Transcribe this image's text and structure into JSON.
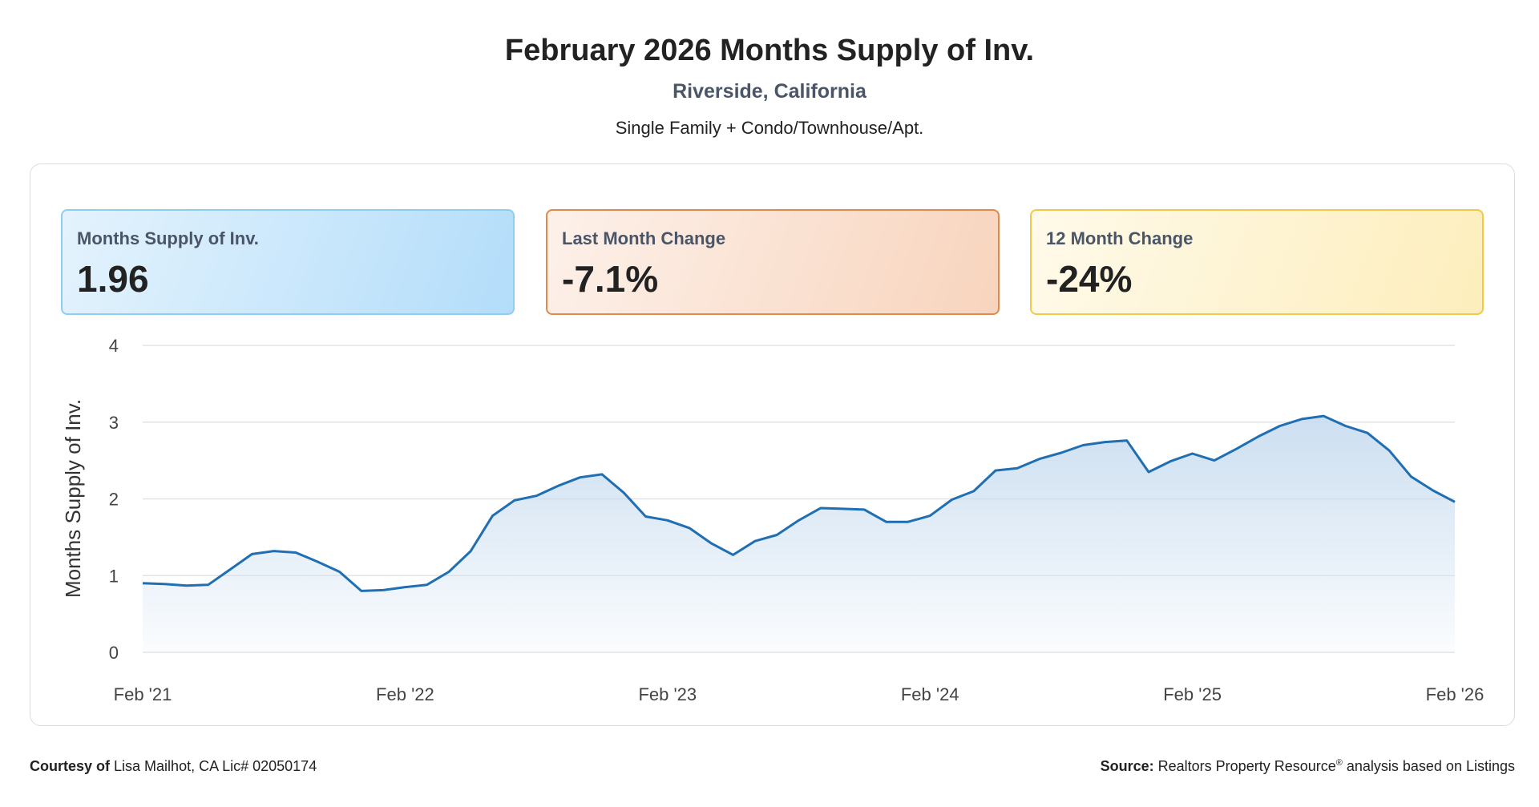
{
  "header": {
    "title": "February 2026 Months Supply of Inv.",
    "subtitle": "Riverside, California",
    "description": "Single Family + Condo/Townhouse/Apt."
  },
  "cards": [
    {
      "label": "Months Supply of Inv.",
      "value": "1.96",
      "color": "#8fcdf0"
    },
    {
      "label": "Last Month Change",
      "value": "-7.1%",
      "color": "#e0894a"
    },
    {
      "label": "12 Month Change",
      "value": "-24%",
      "color": "#f0c94a"
    }
  ],
  "footer": {
    "courtesy_label": "Courtesy of",
    "courtesy_text": "Lisa Mailhot, CA Lic# 02050174",
    "source_label": "Source:",
    "source_text_1": "Realtors Property Resource",
    "source_reg": "®",
    "source_text_2": "analysis based on Listings"
  },
  "chart_data": {
    "type": "area",
    "ylabel": "Months Supply of Inv.",
    "ylim": [
      0,
      4
    ],
    "yticks": [
      0,
      1,
      2,
      3,
      4
    ],
    "xtick_labels": [
      "Feb '21",
      "Feb '22",
      "Feb '23",
      "Feb '24",
      "Feb '25",
      "Feb '26"
    ],
    "line_color": "#1f6fb2",
    "fill_color": "#c9ddf0",
    "grid": true,
    "x": [
      "2021-02",
      "2021-03",
      "2021-04",
      "2021-05",
      "2021-06",
      "2021-07",
      "2021-08",
      "2021-09",
      "2021-10",
      "2021-11",
      "2021-12",
      "2022-01",
      "2022-02",
      "2022-03",
      "2022-04",
      "2022-05",
      "2022-06",
      "2022-07",
      "2022-08",
      "2022-09",
      "2022-10",
      "2022-11",
      "2022-12",
      "2023-01",
      "2023-02",
      "2023-03",
      "2023-04",
      "2023-05",
      "2023-06",
      "2023-07",
      "2023-08",
      "2023-09",
      "2023-10",
      "2023-11",
      "2023-12",
      "2024-01",
      "2024-02",
      "2024-03",
      "2024-04",
      "2024-05",
      "2024-06",
      "2024-07",
      "2024-08",
      "2024-09",
      "2024-10",
      "2024-11",
      "2024-12",
      "2025-01",
      "2025-02",
      "2025-03",
      "2025-04",
      "2025-05",
      "2025-06",
      "2025-07",
      "2025-08",
      "2025-09",
      "2025-10",
      "2025-11",
      "2025-12",
      "2026-01",
      "2026-02"
    ],
    "values": [
      0.9,
      0.89,
      0.87,
      0.88,
      1.08,
      1.28,
      1.32,
      1.3,
      1.18,
      1.05,
      0.8,
      0.81,
      0.85,
      0.88,
      1.05,
      1.32,
      1.78,
      1.98,
      2.04,
      2.17,
      2.28,
      2.32,
      2.08,
      1.77,
      1.72,
      1.62,
      1.42,
      1.27,
      1.45,
      1.53,
      1.72,
      1.88,
      1.87,
      1.86,
      1.7,
      1.7,
      1.78,
      1.99,
      2.1,
      2.37,
      2.4,
      2.52,
      2.6,
      2.7,
      2.74,
      2.76,
      2.35,
      2.49,
      2.59,
      2.5,
      2.65,
      2.81,
      2.95,
      3.04,
      3.08,
      2.95,
      2.86,
      2.63,
      2.29,
      2.11,
      1.96
    ]
  }
}
